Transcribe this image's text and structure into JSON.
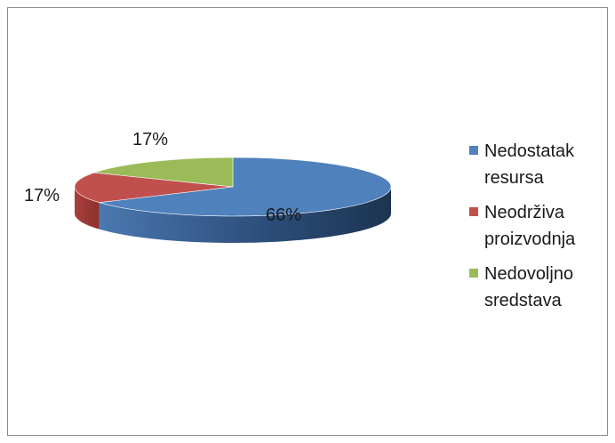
{
  "chart_data": {
    "type": "pie",
    "style": "3d",
    "categories": [
      "Nedostatak resursa",
      "Neodrživa proizvodnja",
      "Nedovoljno sredstava"
    ],
    "values": [
      66,
      17,
      17
    ],
    "data_labels": [
      "66%",
      "17%",
      "17%"
    ],
    "colors": [
      "#4f81bd",
      "#c0504d",
      "#9bbb59"
    ],
    "legend_position": "right",
    "title": ""
  }
}
